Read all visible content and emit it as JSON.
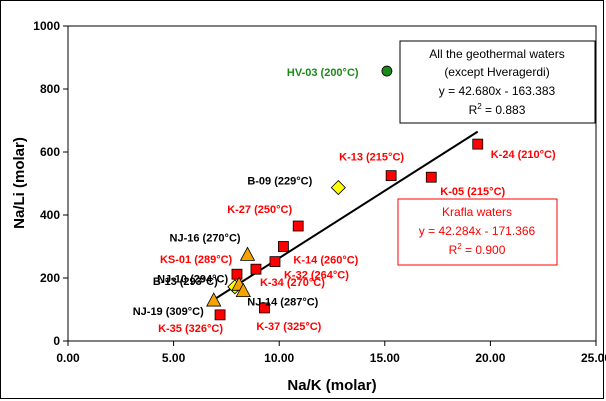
{
  "chart_data": {
    "type": "scatter",
    "xlabel": "Na/K (molar)",
    "ylabel": "Na/Li (molar)",
    "xlim": [
      0,
      25
    ],
    "ylim": [
      0,
      1000
    ],
    "x_ticks": [
      "0.00",
      "5.00",
      "10.00",
      "15.00",
      "20.00",
      "25.00"
    ],
    "y_ticks": [
      "0",
      "200",
      "400",
      "600",
      "800",
      "1000"
    ],
    "grid": false,
    "series": [
      {
        "name": "Krafla waters",
        "marker": "square",
        "color": "#ff0000",
        "label_color": "#ff0000",
        "points": [
          {
            "x": 19.4,
            "y": 625,
            "label": "K-24 (210°C)"
          },
          {
            "x": 15.3,
            "y": 525,
            "label": "K-13 (215°C)"
          },
          {
            "x": 17.2,
            "y": 520,
            "label": "K-05 (215°C)"
          },
          {
            "x": 10.9,
            "y": 365,
            "label": "K-27 (250°C)"
          },
          {
            "x": 10.2,
            "y": 300,
            "label": "K-14 (260°C)"
          },
          {
            "x": 9.8,
            "y": 252,
            "label": "K-32 (264°C)"
          },
          {
            "x": 8.9,
            "y": 228,
            "label": "K-34 (270°C)"
          },
          {
            "x": 8.0,
            "y": 212,
            "label": "KS-01 (289°C)"
          },
          {
            "x": 9.3,
            "y": 105,
            "label": "K-37 (325°C)"
          },
          {
            "x": 7.2,
            "y": 83,
            "label": "K-35 (326°C)"
          }
        ]
      },
      {
        "name": "",
        "marker": "diamond",
        "color": "#ffff00",
        "label_color": "#000000",
        "points": [
          {
            "x": 12.8,
            "y": 487,
            "label": "B-09 (229°C)"
          },
          {
            "x": 7.9,
            "y": 172,
            "label": "B-13 (293°C)"
          }
        ]
      },
      {
        "name": "",
        "marker": "triangle",
        "color": "#f5a300",
        "label_color": "#000000",
        "points": [
          {
            "x": 8.5,
            "y": 275,
            "label": "NJ-16 (270°C)"
          },
          {
            "x": 8.1,
            "y": 180,
            "label": "NJ-10 (294°C)"
          },
          {
            "x": 8.3,
            "y": 160,
            "label": "NJ-14 (287°C)"
          },
          {
            "x": 6.9,
            "y": 130,
            "label": "NJ-19 (309°C)"
          }
        ]
      },
      {
        "name": "",
        "marker": "circle",
        "color": "#1a8a1a",
        "label_color": "#1a8a1a",
        "points": [
          {
            "x": 15.1,
            "y": 857,
            "label": "HV-03 (200°C)"
          }
        ]
      }
    ],
    "fit_line": {
      "slope": 42.68,
      "intercept": -163.383,
      "x_range": [
        7.0,
        19.4
      ]
    },
    "annotations": {
      "all_waters": {
        "line1": "All the geothermal waters",
        "line2": "(except Hveragerdi)",
        "equation": "y = 42.680x - 163.383",
        "r2_prefix": "R",
        "r2_sup": "2",
        "r2_value": " = 0.883"
      },
      "krafla": {
        "title": "Krafla waters",
        "equation": "y = 42.284x - 171.366",
        "r2_prefix": "R",
        "r2_sup": "2",
        "r2_value": " = 0.900"
      }
    }
  }
}
